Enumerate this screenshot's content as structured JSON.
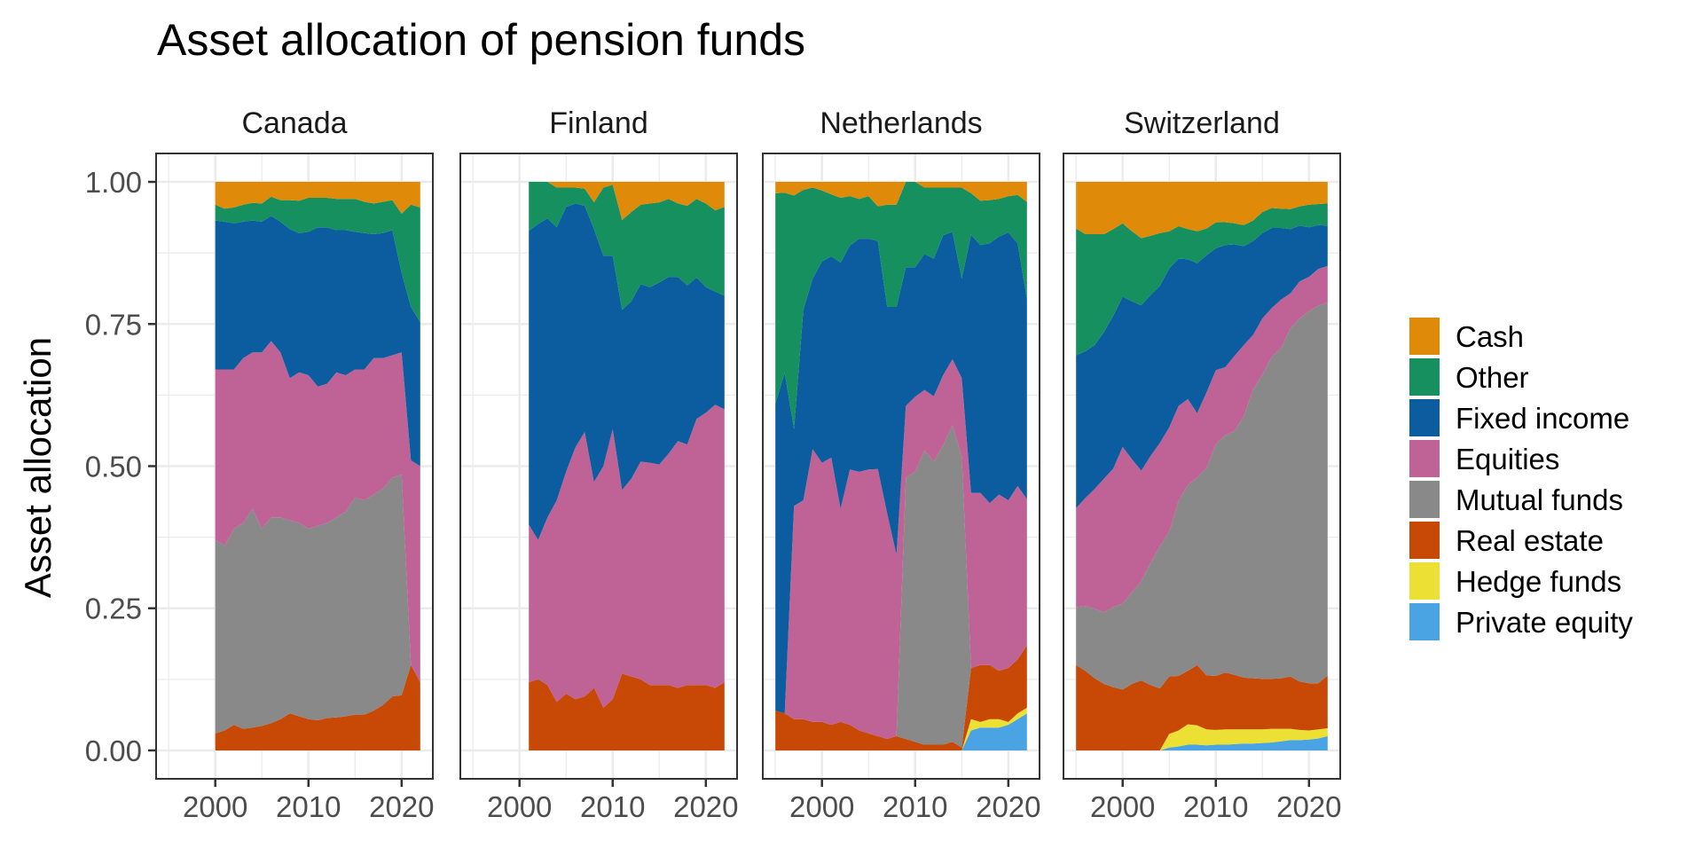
{
  "chart_data": {
    "type": "area",
    "subtype": "stacked",
    "title": "Asset allocation of pension funds",
    "xlabel": "",
    "ylabel": "Asset allocation",
    "xlim": [
      1993.65,
      2023.35
    ],
    "ylim": [
      -0.05,
      1.05
    ],
    "x_ticks": [
      2000,
      2010,
      2020
    ],
    "y_ticks": [
      0,
      0.25,
      0.5,
      0.75,
      1.0
    ],
    "y_tick_labels": [
      "0.00",
      "0.25",
      "0.50",
      "0.75",
      "1.00"
    ],
    "grid": true,
    "legend_position": "right",
    "stack_order_bottom_to_top": [
      "Private equity",
      "Hedge funds",
      "Real estate",
      "Mutual funds",
      "Equities",
      "Fixed income",
      "Other",
      "Cash"
    ],
    "legend": [
      {
        "name": "Cash",
        "color": "#DF8B09"
      },
      {
        "name": "Other",
        "color": "#16905F"
      },
      {
        "name": "Fixed income",
        "color": "#0C5DA0"
      },
      {
        "name": "Equities",
        "color": "#BF6295"
      },
      {
        "name": "Mutual funds",
        "color": "#898989"
      },
      {
        "name": "Real estate",
        "color": "#C84905"
      },
      {
        "name": "Hedge funds",
        "color": "#ECE035"
      },
      {
        "name": "Private equity",
        "color": "#4AA3E2"
      }
    ],
    "facets": [
      {
        "name": "Canada",
        "years": [
          2000,
          2001,
          2002,
          2003,
          2004,
          2005,
          2006,
          2007,
          2008,
          2009,
          2010,
          2011,
          2012,
          2013,
          2014,
          2015,
          2016,
          2017,
          2018,
          2019,
          2020,
          2021,
          2022
        ],
        "series": {
          "Real estate": [
            0.03,
            0.035,
            0.045,
            0.038,
            0.04,
            0.043,
            0.048,
            0.055,
            0.065,
            0.06,
            0.055,
            0.053,
            0.057,
            0.058,
            0.06,
            0.063,
            0.063,
            0.07,
            0.08,
            0.095,
            0.097,
            0.15,
            0.12
          ],
          "Mutual funds": [
            0.34,
            0.325,
            0.345,
            0.362,
            0.385,
            0.347,
            0.362,
            0.355,
            0.34,
            0.34,
            0.335,
            0.342,
            0.343,
            0.352,
            0.36,
            0.382,
            0.377,
            0.38,
            0.38,
            0.385,
            0.388,
            0,
            0
          ],
          "Equities": [
            0.3,
            0.31,
            0.28,
            0.29,
            0.275,
            0.31,
            0.31,
            0.29,
            0.25,
            0.265,
            0.27,
            0.245,
            0.245,
            0.255,
            0.24,
            0.225,
            0.23,
            0.24,
            0.23,
            0.215,
            0.215,
            0.36,
            0.38
          ],
          "Fixed income": [
            0.262,
            0.26,
            0.257,
            0.24,
            0.232,
            0.23,
            0.22,
            0.23,
            0.262,
            0.245,
            0.252,
            0.28,
            0.275,
            0.25,
            0.255,
            0.242,
            0.24,
            0.218,
            0.22,
            0.22,
            0.14,
            0.27,
            0.253
          ],
          "Other": [
            0.028,
            0.023,
            0.028,
            0.03,
            0.031,
            0.032,
            0.034,
            0.038,
            0.051,
            0.057,
            0.06,
            0.052,
            0.052,
            0.055,
            0.055,
            0.058,
            0.055,
            0.054,
            0.055,
            0.053,
            0.104,
            0.18,
            0.202
          ],
          "Cash": [
            0.04,
            0.047,
            0.045,
            0.04,
            0.037,
            0.038,
            0.026,
            0.032,
            0.032,
            0.033,
            0.028,
            0.028,
            0.028,
            0.03,
            0.03,
            0.03,
            0.035,
            0.038,
            0.035,
            0.032,
            0.056,
            0.04,
            0.045
          ]
        }
      },
      {
        "name": "Finland",
        "years": [
          2001,
          2002,
          2003,
          2004,
          2005,
          2006,
          2007,
          2008,
          2009,
          2010,
          2011,
          2012,
          2013,
          2014,
          2015,
          2016,
          2017,
          2018,
          2019,
          2020,
          2021,
          2022
        ],
        "series": {
          "Real estate": [
            0.12,
            0.125,
            0.115,
            0.085,
            0.1,
            0.09,
            0.095,
            0.11,
            0.075,
            0.09,
            0.135,
            0.13,
            0.125,
            0.115,
            0.115,
            0.115,
            0.11,
            0.115,
            0.115,
            0.115,
            0.11,
            0.12
          ],
          "Equities": [
            0.277,
            0.245,
            0.295,
            0.355,
            0.39,
            0.443,
            0.465,
            0.362,
            0.425,
            0.475,
            0.323,
            0.348,
            0.383,
            0.391,
            0.388,
            0.407,
            0.434,
            0.423,
            0.468,
            0.479,
            0.498,
            0.48
          ],
          "Fixed income": [
            0.517,
            0.556,
            0.526,
            0.48,
            0.466,
            0.429,
            0.398,
            0.445,
            0.37,
            0.305,
            0.317,
            0.312,
            0.312,
            0.309,
            0.32,
            0.311,
            0.289,
            0.28,
            0.249,
            0.221,
            0.199,
            0.2
          ],
          "Other": [
            0.086,
            0.074,
            0.064,
            0.07,
            0.034,
            0.028,
            0.03,
            0.047,
            0.12,
            0.125,
            0.158,
            0.157,
            0.14,
            0.147,
            0.141,
            0.137,
            0.129,
            0.14,
            0.138,
            0.147,
            0.143,
            0.156
          ],
          "Cash": [
            0,
            0,
            0,
            0.01,
            0.01,
            0.01,
            0.012,
            0.036,
            0.01,
            0.005,
            0.067,
            0.053,
            0.04,
            0.038,
            0.036,
            0.03,
            0.038,
            0.042,
            0.03,
            0.038,
            0.05,
            0.044
          ]
        }
      },
      {
        "name": "Netherlands",
        "years": [
          1995,
          1996,
          1997,
          1998,
          1999,
          2000,
          2001,
          2002,
          2003,
          2004,
          2005,
          2006,
          2007,
          2008,
          2009,
          2010,
          2011,
          2012,
          2013,
          2014,
          2015,
          2016,
          2017,
          2018,
          2019,
          2020,
          2021,
          2022
        ],
        "series": {
          "Private equity": [
            0,
            0,
            0,
            0,
            0,
            0,
            0,
            0,
            0,
            0,
            0,
            0,
            0,
            0,
            0,
            0,
            0,
            0,
            0,
            0,
            0,
            0.035,
            0.04,
            0.04,
            0.04,
            0.045,
            0.055,
            0.065
          ],
          "Hedge funds": [
            0,
            0,
            0,
            0,
            0,
            0,
            0,
            0,
            0,
            0,
            0,
            0,
            0,
            0,
            0,
            0,
            0,
            0,
            0,
            0,
            0,
            0.02,
            0.01,
            0.015,
            0.015,
            0.005,
            0.01,
            0.01
          ],
          "Real estate": [
            0.07,
            0.065,
            0.055,
            0.055,
            0.05,
            0.05,
            0.045,
            0.05,
            0.045,
            0.035,
            0.03,
            0.025,
            0.02,
            0.025,
            0.02,
            0.015,
            0.01,
            0.01,
            0.01,
            0.015,
            0.005,
            0.09,
            0.1,
            0.095,
            0.085,
            0.095,
            0.095,
            0.11
          ],
          "Mutual funds": [
            0,
            0,
            0,
            0,
            0,
            0,
            0,
            0,
            0,
            0,
            0,
            0,
            0,
            0,
            0.46,
            0.475,
            0.518,
            0.498,
            0.526,
            0.557,
            0.512,
            0,
            0,
            0,
            0,
            0,
            0,
            0
          ],
          "Equities": [
            0,
            0,
            0.375,
            0.385,
            0.48,
            0.456,
            0.47,
            0.375,
            0.449,
            0.455,
            0.464,
            0.47,
            0.397,
            0.319,
            0.126,
            0.132,
            0.106,
            0.115,
            0.124,
            0.116,
            0.138,
            0.308,
            0.303,
            0.285,
            0.31,
            0.295,
            0.305,
            0.257
          ],
          "Fixed income": [
            0.54,
            0.599,
            0.135,
            0.335,
            0.3,
            0.354,
            0.354,
            0.433,
            0.394,
            0.41,
            0.406,
            0.401,
            0.363,
            0.436,
            0.244,
            0.228,
            0.239,
            0.242,
            0.246,
            0.224,
            0.175,
            0.454,
            0.436,
            0.457,
            0.454,
            0.471,
            0.427,
            0.352
          ],
          "Other": [
            0.37,
            0.317,
            0.411,
            0.211,
            0.16,
            0.125,
            0.109,
            0.114,
            0.087,
            0.07,
            0.075,
            0.061,
            0.18,
            0.18,
            0.15,
            0.15,
            0.117,
            0.125,
            0.084,
            0.078,
            0.16,
            0.073,
            0.078,
            0.076,
            0.066,
            0.064,
            0.085,
            0.171
          ],
          "Cash": [
            0.02,
            0.019,
            0.024,
            0.014,
            0.01,
            0.015,
            0.022,
            0.028,
            0.025,
            0.03,
            0.025,
            0.043,
            0.04,
            0.04,
            0,
            0,
            0.01,
            0.01,
            0.01,
            0.01,
            0.01,
            0.02,
            0.033,
            0.032,
            0.03,
            0.025,
            0.023,
            0.035
          ]
        }
      },
      {
        "name": "Switzerland",
        "years": [
          1995,
          1996,
          1997,
          1998,
          1999,
          2000,
          2001,
          2002,
          2003,
          2004,
          2005,
          2006,
          2007,
          2008,
          2009,
          2010,
          2011,
          2012,
          2013,
          2014,
          2015,
          2016,
          2017,
          2018,
          2019,
          2020,
          2021,
          2022
        ],
        "series": {
          "Private equity": [
            0,
            0,
            0,
            0,
            0,
            0,
            0,
            0,
            0,
            0,
            0.005,
            0.007,
            0.01,
            0.01,
            0.009,
            0.01,
            0.01,
            0.011,
            0.012,
            0.012,
            0.013,
            0.014,
            0.016,
            0.018,
            0.018,
            0.019,
            0.021,
            0.025
          ],
          "Hedge funds": [
            0,
            0,
            0,
            0,
            0,
            0,
            0,
            0,
            0,
            0,
            0.024,
            0.028,
            0.036,
            0.034,
            0.028,
            0.026,
            0.027,
            0.026,
            0.025,
            0.025,
            0.024,
            0.024,
            0.022,
            0.02,
            0.018,
            0.016,
            0.016,
            0.014
          ],
          "Real estate": [
            0.15,
            0.14,
            0.127,
            0.117,
            0.111,
            0.107,
            0.117,
            0.123,
            0.115,
            0.109,
            0.101,
            0.096,
            0.094,
            0.106,
            0.095,
            0.095,
            0.1,
            0.096,
            0.091,
            0.09,
            0.089,
            0.088,
            0.089,
            0.092,
            0.085,
            0.083,
            0.081,
            0.093
          ],
          "Mutual funds": [
            0.102,
            0.114,
            0.122,
            0.126,
            0.141,
            0.151,
            0.161,
            0.175,
            0.215,
            0.25,
            0.255,
            0.308,
            0.327,
            0.33,
            0.365,
            0.408,
            0.417,
            0.429,
            0.46,
            0.508,
            0.535,
            0.566,
            0.581,
            0.612,
            0.639,
            0.655,
            0.664,
            0.656
          ],
          "Equities": [
            0.174,
            0.19,
            0.211,
            0.235,
            0.244,
            0.276,
            0.234,
            0.194,
            0.188,
            0.182,
            0.183,
            0.167,
            0.151,
            0.113,
            0.133,
            0.13,
            0.12,
            0.132,
            0.125,
            0.096,
            0.099,
            0.086,
            0.085,
            0.062,
            0.065,
            0.06,
            0.065,
            0.064
          ],
          "Fixed income": [
            0.269,
            0.258,
            0.253,
            0.258,
            0.269,
            0.264,
            0.278,
            0.291,
            0.283,
            0.276,
            0.28,
            0.259,
            0.246,
            0.264,
            0.241,
            0.214,
            0.215,
            0.196,
            0.174,
            0.165,
            0.15,
            0.141,
            0.126,
            0.113,
            0.098,
            0.087,
            0.077,
            0.071
          ],
          "Other": [
            0.223,
            0.206,
            0.195,
            0.172,
            0.152,
            0.129,
            0.123,
            0.118,
            0.104,
            0.093,
            0.065,
            0.057,
            0.053,
            0.056,
            0.047,
            0.046,
            0.04,
            0.037,
            0.037,
            0.036,
            0.037,
            0.035,
            0.034,
            0.035,
            0.034,
            0.04,
            0.037,
            0.039
          ],
          "Cash": [
            0.082,
            0.092,
            0.092,
            0.092,
            0.083,
            0.073,
            0.087,
            0.099,
            0.095,
            0.09,
            0.087,
            0.078,
            0.083,
            0.087,
            0.082,
            0.071,
            0.071,
            0.073,
            0.076,
            0.068,
            0.053,
            0.046,
            0.047,
            0.048,
            0.043,
            0.04,
            0.039,
            0.038
          ]
        }
      }
    ]
  }
}
